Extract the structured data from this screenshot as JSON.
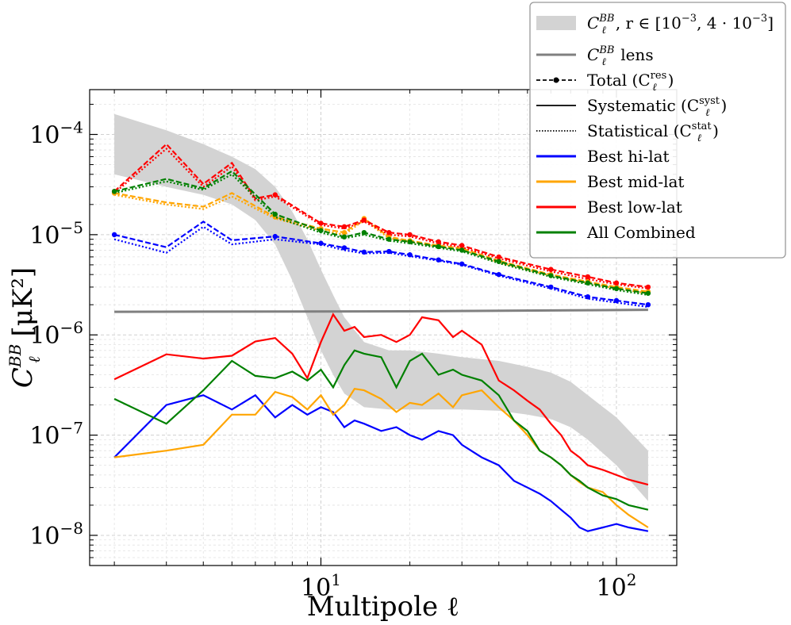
{
  "chart_data": {
    "type": "line",
    "xscale": "log",
    "yscale": "log",
    "xlim": [
      1.65,
      160
    ],
    "ylim": [
      5e-09,
      0.00028
    ],
    "xlabel": "Multipole ℓ",
    "ylabel": "C_ℓ^BB [μK²]",
    "ylabel_parts": {
      "main": "C",
      "sub": "ℓ",
      "sup": "BB",
      "units": "[μK²]"
    },
    "xticks": [
      {
        "value": 10,
        "base": "10",
        "exp": "1"
      },
      {
        "value": 100,
        "base": "10",
        "exp": "2"
      }
    ],
    "yticks": [
      {
        "value": 1e-08,
        "base": "10",
        "exp": "−8"
      },
      {
        "value": 1e-07,
        "base": "10",
        "exp": "−7"
      },
      {
        "value": 1e-06,
        "base": "10",
        "exp": "−6"
      },
      {
        "value": 1e-05,
        "base": "10",
        "exp": "−5"
      },
      {
        "value": 0.0001,
        "base": "10",
        "exp": "−4"
      }
    ],
    "grid": true,
    "legend_position": "top-right",
    "legend": [
      {
        "kind": "band",
        "color": "#d3d3d3",
        "main": "C",
        "sub": "ℓ",
        "sup": "BB",
        "tail": ",  r ∈ [10",
        "tail_sup": "−3",
        "tail2": ", 4 · 10",
        "tail2_sup": "−3",
        "tail3": "]"
      },
      {
        "kind": "line",
        "color": "#808080",
        "main": "C",
        "sub": "ℓ",
        "sup": "BB",
        "tail": " lens"
      },
      {
        "kind": "dashed-marker",
        "color": "#000000",
        "text": "Total (C",
        "sub": "ℓ",
        "sup": "res",
        "tail": ")"
      },
      {
        "kind": "solid",
        "color": "#000000",
        "text": "Systematic (C",
        "sub": "ℓ",
        "sup": "syst",
        "tail": ")"
      },
      {
        "kind": "dotted",
        "color": "#000000",
        "text": "Statistical (C",
        "sub": "ℓ",
        "sup": "stat",
        "tail": ")"
      },
      {
        "kind": "color",
        "color": "#0000ff",
        "text": "Best hi-lat"
      },
      {
        "kind": "color",
        "color": "#ffa500",
        "text": "Best mid-lat"
      },
      {
        "kind": "color",
        "color": "#ff0000",
        "text": "Best low-lat"
      },
      {
        "kind": "color",
        "color": "#008000",
        "text": "All Combined"
      }
    ],
    "band": {
      "name": "C_ℓ^BB, r ∈ [1e-3, 4e-3]",
      "color": "#d3d3d3",
      "x": [
        2,
        3,
        4,
        5,
        6,
        7,
        8,
        9,
        10,
        11,
        12,
        14,
        17,
        20,
        25,
        30,
        40,
        50,
        60,
        70,
        80,
        100,
        128
      ],
      "lower": [
        4e-05,
        3e-05,
        2.5e-05,
        2e-05,
        1.4e-05,
        8e-06,
        3.5e-06,
        1.5e-06,
        7e-07,
        4e-07,
        2.6e-07,
        1.9e-07,
        1.8e-07,
        1.8e-07,
        1.8e-07,
        1.8e-07,
        1.75e-07,
        1.6e-07,
        1.45e-07,
        1.2e-07,
        9e-08,
        5e-08,
        2.2e-08
      ],
      "upper": [
        0.00016,
        0.00011,
        8e-05,
        6e-05,
        4.5e-05,
        3e-05,
        1.7e-05,
        9e-06,
        4.5e-06,
        2.5e-06,
        1.5e-06,
        8.5e-07,
        7e-07,
        7e-07,
        6.5e-07,
        6e-07,
        5.5e-07,
        4.8e-07,
        4.2e-07,
        3.4e-07,
        2.5e-07,
        1.5e-07,
        7e-08
      ]
    },
    "lens": {
      "name": "C_ℓ^BB lens",
      "color": "#808080",
      "x": [
        2,
        20,
        128
      ],
      "values": [
        1.7e-06,
        1.72e-06,
        1.78e-06
      ]
    },
    "series": [
      {
        "name": "Best hi-lat",
        "color": "#0000ff",
        "total": {
          "x": [
            2,
            3,
            4,
            5,
            7,
            10,
            12,
            14,
            17,
            20,
            25,
            30,
            40,
            60,
            80,
            100,
            128
          ],
          "values": [
            1e-05,
            7.5e-06,
            1.35e-05,
            8.8e-06,
            9.6e-06,
            8.2e-06,
            7.4e-06,
            6.7e-06,
            6.8e-06,
            6.3e-06,
            5.6e-06,
            5.1e-06,
            4e-06,
            3e-06,
            2.4e-06,
            2.2e-06,
            2e-06
          ]
        },
        "statistical": {
          "x": [
            2,
            3,
            4,
            5,
            7,
            10,
            12,
            14,
            17,
            20,
            25,
            30,
            40,
            60,
            80,
            100,
            128
          ],
          "values": [
            9e-06,
            6.6e-06,
            1.2e-05,
            8e-06,
            9e-06,
            8e-06,
            7e-06,
            6.5e-06,
            6.6e-06,
            6.1e-06,
            5.5e-06,
            5e-06,
            3.9e-06,
            2.9e-06,
            2.3e-06,
            2.1e-06,
            1.9e-06
          ]
        },
        "systematic": {
          "x": [
            2,
            3,
            4,
            5,
            6,
            7,
            8,
            9,
            10,
            11,
            12,
            13,
            14,
            16,
            18,
            20,
            22,
            25,
            28,
            30,
            35,
            40,
            45,
            50,
            55,
            60,
            65,
            70,
            75,
            80,
            90,
            100,
            110,
            128
          ],
          "values": [
            6e-08,
            2e-07,
            2.5e-07,
            1.8e-07,
            2.5e-07,
            1.5e-07,
            2e-07,
            1.6e-07,
            1.9e-07,
            1.7e-07,
            1.2e-07,
            1.4e-07,
            1.3e-07,
            1.1e-07,
            1.2e-07,
            1e-07,
            9e-08,
            1.1e-07,
            1e-07,
            8e-08,
            6e-08,
            5e-08,
            3.5e-08,
            3e-08,
            2.6e-08,
            2.2e-08,
            1.8e-08,
            1.5e-08,
            1.2e-08,
            1.1e-08,
            1.2e-08,
            1.3e-08,
            1.2e-08,
            1.1e-08
          ]
        }
      },
      {
        "name": "Best mid-lat",
        "color": "#ffa500",
        "total": {
          "x": [
            2,
            3,
            4,
            5,
            7,
            10,
            12,
            14,
            17,
            20,
            25,
            30,
            40,
            60,
            80,
            100,
            128
          ],
          "values": [
            2.6e-05,
            2.1e-05,
            1.9e-05,
            2.6e-05,
            1.5e-05,
            1.15e-05,
            1.05e-05,
            1.45e-05,
            9.5e-06,
            8.7e-06,
            7.8e-06,
            7.3e-06,
            5.5e-06,
            4e-06,
            3.4e-06,
            3e-06,
            2.7e-06
          ]
        },
        "statistical": {
          "x": [
            2,
            3,
            4,
            5,
            7,
            10,
            12,
            14,
            17,
            20,
            25,
            30,
            40,
            60,
            80,
            100,
            128
          ],
          "values": [
            2.5e-05,
            2e-05,
            1.8e-05,
            2.4e-05,
            1.45e-05,
            1.1e-05,
            1e-05,
            1.4e-05,
            9.2e-06,
            8.5e-06,
            7.6e-06,
            7.1e-06,
            5.3e-06,
            3.9e-06,
            3.3e-06,
            2.9e-06,
            2.6e-06
          ]
        },
        "systematic": {
          "x": [
            2,
            3,
            4,
            5,
            6,
            7,
            8,
            9,
            10,
            11,
            12,
            13,
            14,
            16,
            18,
            20,
            22,
            25,
            28,
            30,
            35,
            40,
            45,
            50,
            55,
            60,
            65,
            70,
            75,
            80,
            90,
            100,
            110,
            128
          ],
          "values": [
            6e-08,
            7e-08,
            8e-08,
            1.6e-07,
            1.6e-07,
            2.7e-07,
            2.4e-07,
            1.8e-07,
            2.5e-07,
            1.6e-07,
            2e-07,
            2.9e-07,
            2.8e-07,
            2.3e-07,
            1.7e-07,
            2.1e-07,
            2e-07,
            2.6e-07,
            1.9e-07,
            2.5e-07,
            2.8e-07,
            1.9e-07,
            1.4e-07,
            1e-07,
            7e-08,
            6e-08,
            5e-08,
            4e-08,
            3.4e-08,
            3e-08,
            2.7e-08,
            2e-08,
            1.6e-08,
            1.2e-08
          ]
        }
      },
      {
        "name": "Best low-lat",
        "color": "#ff0000",
        "total": {
          "x": [
            2,
            3,
            4,
            5,
            6,
            7,
            10,
            12,
            14,
            17,
            20,
            25,
            30,
            40,
            60,
            80,
            100,
            128
          ],
          "values": [
            2.7e-05,
            8e-05,
            3.2e-05,
            5.2e-05,
            2.3e-05,
            2.5e-05,
            1.3e-05,
            1.2e-05,
            1.4e-05,
            1.05e-05,
            1e-05,
            8.5e-06,
            7.8e-06,
            6e-06,
            4.5e-06,
            3.8e-06,
            3.3e-06,
            3e-06
          ]
        },
        "statistical": {
          "x": [
            2,
            3,
            4,
            5,
            6,
            7,
            10,
            12,
            14,
            17,
            20,
            25,
            30,
            40,
            60,
            80,
            100,
            128
          ],
          "values": [
            2.6e-05,
            7.2e-05,
            3e-05,
            4.8e-05,
            2.2e-05,
            2.4e-05,
            1.25e-05,
            1.15e-05,
            1.35e-05,
            1e-05,
            9.6e-06,
            8.2e-06,
            7.5e-06,
            5.8e-06,
            4.3e-06,
            3.6e-06,
            3.2e-06,
            2.9e-06
          ]
        },
        "systematic": {
          "x": [
            2,
            3,
            4,
            5,
            6,
            7,
            8,
            9,
            10,
            11,
            12,
            13,
            14,
            16,
            18,
            20,
            22,
            25,
            28,
            30,
            35,
            40,
            45,
            50,
            55,
            60,
            65,
            70,
            75,
            80,
            90,
            100,
            110,
            128
          ],
          "values": [
            3.6e-07,
            6.4e-07,
            5.8e-07,
            6.2e-07,
            8.6e-07,
            9.3e-07,
            6.5e-07,
            3.7e-07,
            8.5e-07,
            1.6e-06,
            1.1e-06,
            1.2e-06,
            9.5e-07,
            1e-06,
            8.5e-07,
            1e-06,
            1.5e-06,
            1.4e-06,
            9.5e-07,
            1.1e-06,
            8e-07,
            3.5e-07,
            2.8e-07,
            2.2e-07,
            1.8e-07,
            1.3e-07,
            1e-07,
            7e-08,
            6e-08,
            5e-08,
            4.5e-08,
            4e-08,
            3.6e-08,
            3.2e-08
          ]
        }
      },
      {
        "name": "All Combined",
        "color": "#008000",
        "total": {
          "x": [
            2,
            3,
            4,
            5,
            7,
            10,
            12,
            14,
            17,
            20,
            25,
            30,
            40,
            60,
            80,
            100,
            128
          ],
          "values": [
            2.7e-05,
            3.6e-05,
            2.9e-05,
            4.3e-05,
            1.6e-05,
            1.1e-05,
            9.5e-06,
            1.05e-05,
            9e-06,
            8.5e-06,
            7.6e-06,
            7e-06,
            5.4e-06,
            3.9e-06,
            3.3e-06,
            2.9e-06,
            2.6e-06
          ]
        },
        "statistical": {
          "x": [
            2,
            3,
            4,
            5,
            7,
            10,
            12,
            14,
            17,
            20,
            25,
            30,
            40,
            60,
            80,
            100,
            128
          ],
          "values": [
            2.6e-05,
            3.4e-05,
            2.8e-05,
            4e-05,
            1.5e-05,
            1.05e-05,
            9.2e-06,
            1e-05,
            8.7e-06,
            8.2e-06,
            7.4e-06,
            6.8e-06,
            5.2e-06,
            3.8e-06,
            3.2e-06,
            2.8e-06,
            2.5e-06
          ]
        },
        "systematic": {
          "x": [
            2,
            3,
            4,
            5,
            6,
            7,
            8,
            9,
            10,
            11,
            12,
            13,
            14,
            16,
            18,
            20,
            22,
            25,
            28,
            30,
            35,
            40,
            45,
            50,
            55,
            60,
            65,
            70,
            75,
            80,
            90,
            100,
            110,
            128
          ],
          "values": [
            2.3e-07,
            1.3e-07,
            2.8e-07,
            5.5e-07,
            3.9e-07,
            3.7e-07,
            4.3e-07,
            3.5e-07,
            4.5e-07,
            3e-07,
            5e-07,
            7e-07,
            6.5e-07,
            6e-07,
            3e-07,
            5.5e-07,
            6.5e-07,
            4e-07,
            4.5e-07,
            4e-07,
            3.5e-07,
            2.5e-07,
            1.4e-07,
            1.1e-07,
            7e-08,
            6e-08,
            5e-08,
            4e-08,
            3.5e-08,
            3e-08,
            2.5e-08,
            2.3e-08,
            2e-08,
            1.8e-08
          ]
        }
      }
    ]
  }
}
